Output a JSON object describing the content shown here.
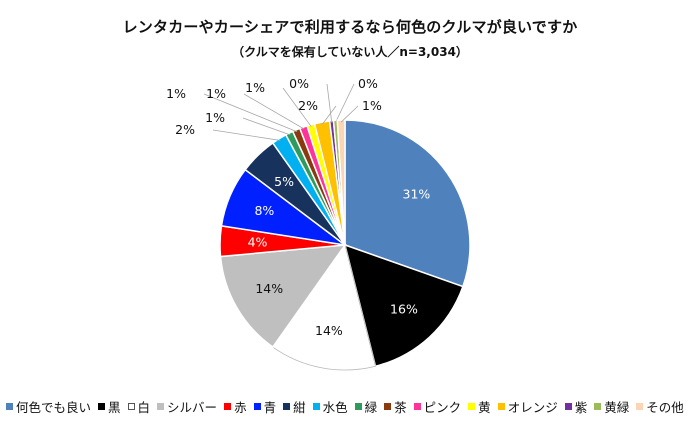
{
  "chart_data": {
    "type": "pie",
    "title": "レンタカーやカーシェアで利用するなら何色のクルマが良いですか",
    "subtitle": "（クルマを保有していない人／n=3,034）",
    "legend_position": "bottom",
    "slices": [
      {
        "name": "何色でも良い",
        "value": 31,
        "label": "31%",
        "color": "#4f81bd"
      },
      {
        "name": "黒",
        "value": 16,
        "label": "16%",
        "color": "#000000"
      },
      {
        "name": "白",
        "value": 14,
        "label": "14%",
        "color": "#ffffff"
      },
      {
        "name": "シルバー",
        "value": 14,
        "label": "14%",
        "color": "#bfbfbf"
      },
      {
        "name": "赤",
        "value": 4,
        "label": "4%",
        "color": "#ff0000"
      },
      {
        "name": "青",
        "value": 8,
        "label": "8%",
        "color": "#0020ff"
      },
      {
        "name": "紺",
        "value": 5,
        "label": "5%",
        "color": "#17325c"
      },
      {
        "name": "水色",
        "value": 2,
        "label": "2%",
        "color": "#00b0f0"
      },
      {
        "name": "緑",
        "value": 1,
        "label": "1%",
        "color": "#2e9a5e"
      },
      {
        "name": "茶",
        "value": 1,
        "label": "1%",
        "color": "#8b3a0f"
      },
      {
        "name": "ピンク",
        "value": 1,
        "label": "1%",
        "color": "#ff3399"
      },
      {
        "name": "黄",
        "value": 1,
        "label": "1%",
        "color": "#ffff00"
      },
      {
        "name": "オレンジ",
        "value": 2,
        "label": "2%",
        "color": "#ffc000"
      },
      {
        "name": "紫",
        "value": 0,
        "label": "0%",
        "color": "#7030a0"
      },
      {
        "name": "黄緑",
        "value": 0,
        "label": "0%",
        "color": "#9bbb59"
      },
      {
        "name": "その他",
        "value": 1,
        "label": "1%",
        "color": "#fcd5b4"
      }
    ]
  }
}
